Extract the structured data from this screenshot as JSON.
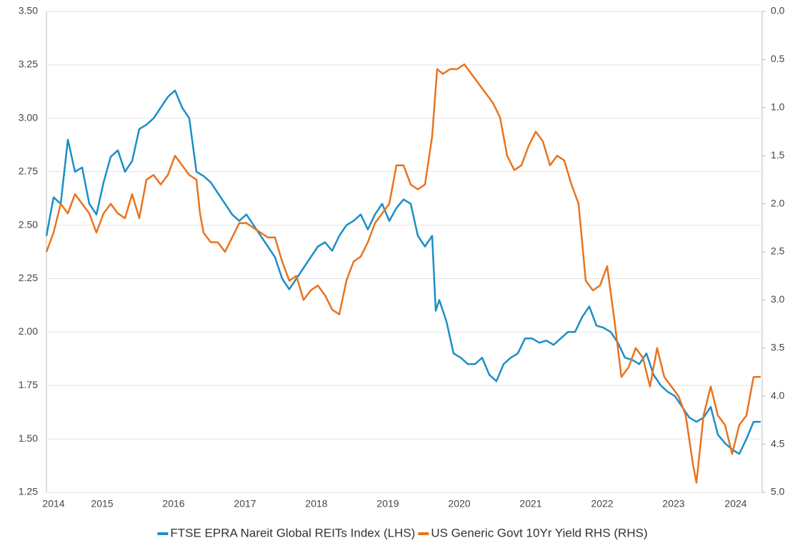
{
  "chart_data": {
    "type": "line",
    "xlim": [
      2014.72,
      2024.74
    ],
    "xticks": [
      {
        "value": 2014.82,
        "label": "2014"
      },
      {
        "value": 2015.5,
        "label": "2015"
      },
      {
        "value": 2016.5,
        "label": "2016"
      },
      {
        "value": 2017.5,
        "label": "2017"
      },
      {
        "value": 2018.5,
        "label": "2018"
      },
      {
        "value": 2019.5,
        "label": "2019"
      },
      {
        "value": 2020.5,
        "label": "2020"
      },
      {
        "value": 2021.5,
        "label": "2021"
      },
      {
        "value": 2022.5,
        "label": "2022"
      },
      {
        "value": 2023.5,
        "label": "2023"
      },
      {
        "value": 2024.37,
        "label": "2024"
      }
    ],
    "ylim": [
      1.25,
      3.5
    ],
    "yticks": [
      1.25,
      {
        "value": 1.5,
        "label": "1.50"
      },
      1.75,
      {
        "value": 2.0,
        "label": "2.00"
      },
      2.25,
      {
        "value": 2.5,
        "label": "2.50"
      },
      2.75,
      {
        "value": 3.0,
        "label": "3.00"
      },
      3.25,
      {
        "value": 3.5,
        "label": "3.50"
      }
    ],
    "y2lim": [
      5,
      0
    ],
    "y2ticks": [
      {
        "value": 0,
        "label": "0.0"
      },
      0.5,
      {
        "value": 1,
        "label": "1.0"
      },
      1.5,
      {
        "value": 2,
        "label": "2.0"
      },
      2.5,
      {
        "value": 3,
        "label": "3.0"
      },
      3.5,
      {
        "value": 4,
        "label": "4.0"
      },
      4.5,
      {
        "value": 5,
        "label": "5.0"
      }
    ],
    "grid": true,
    "legend": "bottom",
    "series": [
      {
        "name": "FTSE EPRA Nareit Global REITs Index (LHS)",
        "color": "#1b8ec6",
        "x": [
          2014.72,
          2014.82,
          2014.92,
          2015.02,
          2015.12,
          2015.22,
          2015.32,
          2015.42,
          2015.52,
          2015.62,
          2015.72,
          2015.82,
          2015.92,
          2016.02,
          2016.12,
          2016.22,
          2016.32,
          2016.42,
          2016.52,
          2016.62,
          2016.72,
          2016.82,
          2016.92,
          2017.02,
          2017.12,
          2017.22,
          2017.32,
          2017.42,
          2017.52,
          2017.62,
          2017.72,
          2017.82,
          2017.92,
          2018.02,
          2018.12,
          2018.22,
          2018.32,
          2018.42,
          2018.52,
          2018.62,
          2018.72,
          2018.82,
          2018.92,
          2019.02,
          2019.12,
          2019.22,
          2019.32,
          2019.42,
          2019.52,
          2019.62,
          2019.72,
          2019.82,
          2019.92,
          2020.02,
          2020.12,
          2020.17,
          2020.22,
          2020.32,
          2020.42,
          2020.52,
          2020.62,
          2020.72,
          2020.82,
          2020.92,
          2021.02,
          2021.12,
          2021.22,
          2021.32,
          2021.42,
          2021.52,
          2021.62,
          2021.72,
          2021.82,
          2021.92,
          2022.02,
          2022.12,
          2022.22,
          2022.32,
          2022.42,
          2022.52,
          2022.62,
          2022.72,
          2022.82,
          2022.92,
          2023.02,
          2023.12,
          2023.22,
          2023.32,
          2023.42,
          2023.52,
          2023.62,
          2023.72,
          2023.82,
          2023.92,
          2024.02,
          2024.12,
          2024.22,
          2024.32,
          2024.42,
          2024.52,
          2024.62,
          2024.72
        ],
        "values": [
          2.45,
          2.63,
          2.6,
          2.9,
          2.75,
          2.77,
          2.6,
          2.55,
          2.7,
          2.82,
          2.85,
          2.75,
          2.8,
          2.95,
          2.97,
          3.0,
          3.05,
          3.1,
          3.13,
          3.05,
          3.0,
          2.75,
          2.73,
          2.7,
          2.65,
          2.6,
          2.55,
          2.52,
          2.55,
          2.5,
          2.45,
          2.4,
          2.35,
          2.25,
          2.2,
          2.25,
          2.3,
          2.35,
          2.4,
          2.42,
          2.38,
          2.45,
          2.5,
          2.52,
          2.55,
          2.48,
          2.55,
          2.6,
          2.52,
          2.58,
          2.62,
          2.6,
          2.45,
          2.4,
          2.45,
          2.1,
          2.15,
          2.05,
          1.9,
          1.88,
          1.85,
          1.85,
          1.88,
          1.8,
          1.77,
          1.85,
          1.88,
          1.9,
          1.97,
          1.97,
          1.95,
          1.96,
          1.94,
          1.97,
          2.0,
          2.0,
          2.07,
          2.12,
          2.03,
          2.02,
          2.0,
          1.95,
          1.88,
          1.87,
          1.85,
          1.9,
          1.8,
          1.75,
          1.72,
          1.7,
          1.65,
          1.6,
          1.58,
          1.6,
          1.65,
          1.52,
          1.48,
          1.45,
          1.43,
          1.5,
          1.58,
          1.58
        ]
      },
      {
        "name": "US Generic Govt 10Yr Yield RHS (RHS)",
        "color": "#e8731e",
        "axis": "y2",
        "x": [
          2014.72,
          2014.82,
          2014.92,
          2015.02,
          2015.12,
          2015.22,
          2015.32,
          2015.42,
          2015.52,
          2015.62,
          2015.72,
          2015.82,
          2015.92,
          2016.02,
          2016.12,
          2016.22,
          2016.32,
          2016.42,
          2016.52,
          2016.62,
          2016.72,
          2016.82,
          2016.87,
          2016.92,
          2017.02,
          2017.12,
          2017.22,
          2017.32,
          2017.42,
          2017.52,
          2017.62,
          2017.72,
          2017.82,
          2017.92,
          2018.02,
          2018.12,
          2018.22,
          2018.32,
          2018.42,
          2018.52,
          2018.62,
          2018.72,
          2018.82,
          2018.92,
          2019.02,
          2019.12,
          2019.22,
          2019.32,
          2019.42,
          2019.52,
          2019.62,
          2019.72,
          2019.82,
          2019.92,
          2020.02,
          2020.12,
          2020.19,
          2020.27,
          2020.37,
          2020.47,
          2020.57,
          2020.67,
          2020.77,
          2020.87,
          2020.97,
          2021.07,
          2021.17,
          2021.27,
          2021.37,
          2021.47,
          2021.57,
          2021.67,
          2021.77,
          2021.87,
          2021.97,
          2022.07,
          2022.17,
          2022.22,
          2022.27,
          2022.37,
          2022.47,
          2022.57,
          2022.67,
          2022.77,
          2022.87,
          2022.97,
          2023.07,
          2023.17,
          2023.27,
          2023.37,
          2023.47,
          2023.57,
          2023.67,
          2023.77,
          2023.82,
          2023.92,
          2024.02,
          2024.12,
          2024.22,
          2024.32,
          2024.42,
          2024.52,
          2024.62,
          2024.72
        ],
        "values": [
          2.5,
          2.3,
          2.0,
          2.1,
          1.9,
          2.0,
          2.1,
          2.3,
          2.1,
          2.0,
          2.1,
          2.15,
          1.9,
          2.15,
          1.75,
          1.7,
          1.8,
          1.7,
          1.5,
          1.6,
          1.7,
          1.75,
          2.1,
          2.3,
          2.4,
          2.4,
          2.5,
          2.35,
          2.2,
          2.2,
          2.25,
          2.3,
          2.35,
          2.35,
          2.6,
          2.8,
          2.75,
          3.0,
          2.9,
          2.85,
          2.95,
          3.1,
          3.15,
          2.8,
          2.6,
          2.55,
          2.4,
          2.2,
          2.1,
          2.0,
          1.6,
          1.6,
          1.8,
          1.85,
          1.8,
          1.3,
          0.6,
          0.65,
          0.6,
          0.6,
          0.55,
          0.65,
          0.75,
          0.85,
          0.95,
          1.1,
          1.5,
          1.65,
          1.6,
          1.4,
          1.25,
          1.35,
          1.6,
          1.5,
          1.55,
          1.8,
          2.0,
          2.4,
          2.8,
          2.9,
          2.85,
          2.65,
          3.2,
          3.8,
          3.7,
          3.5,
          3.6,
          3.9,
          3.5,
          3.8,
          3.9,
          4.0,
          4.2,
          4.7,
          4.9,
          4.2,
          3.9,
          4.2,
          4.3,
          4.6,
          4.3,
          4.2,
          3.8,
          3.8
        ]
      }
    ]
  }
}
